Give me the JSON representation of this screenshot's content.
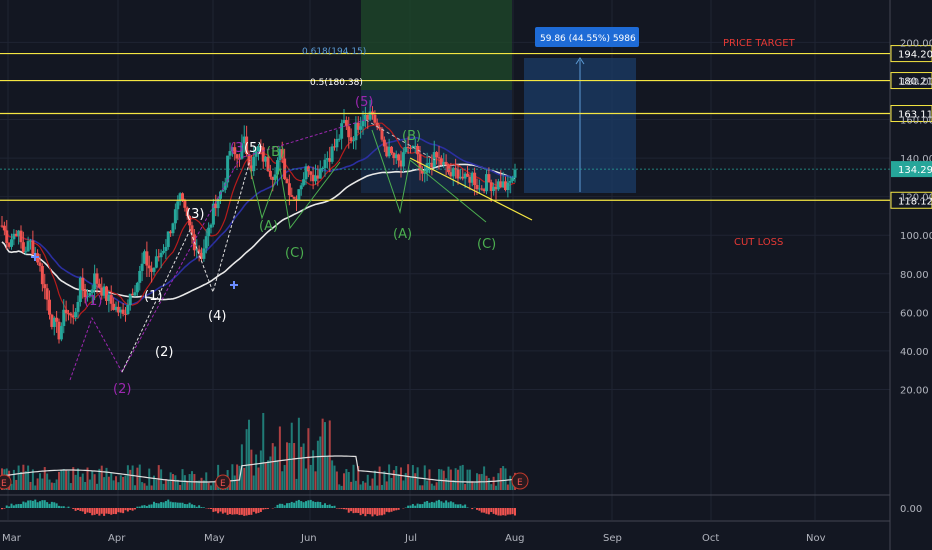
{
  "chart_data": {
    "type": "candlestick",
    "title": "",
    "xlabel": "",
    "ylabel": "",
    "x_tick_labels": [
      "Mar",
      "Apr",
      "May",
      "Jun",
      "Jul",
      "Aug",
      "Sep",
      "Oct",
      "Nov"
    ],
    "y_tick_labels": [
      "200.00",
      "180.00",
      "160.00",
      "140.00",
      "120.00",
      "100.00",
      "80.00",
      "60.00",
      "40.00",
      "20.00"
    ],
    "y_ticks": [
      200,
      180,
      160,
      140,
      120,
      100,
      80,
      60,
      40,
      20
    ],
    "ylim": [
      0,
      218
    ],
    "current_price": 134.29,
    "current_price_label": "134.29",
    "horizontal_levels": [
      {
        "label": "194.20",
        "value": 194.2
      },
      {
        "label": "180.21",
        "value": 180.21
      },
      {
        "label": "163.11",
        "value": 163.11
      },
      {
        "label": "118.12",
        "value": 118.12
      }
    ],
    "fib_labels": [
      {
        "text": "0.618(194.15)",
        "value": 194.15,
        "color": "#5b9bd5"
      },
      {
        "text": "0.5(180.38)",
        "value": 180.38,
        "color": "#ffffff"
      }
    ],
    "annotations": {
      "price_target": "PRICE TARGET",
      "cut_loss": "CUT LOSS",
      "measure_box": "59.86 (44.55%) 5986"
    },
    "oscillator_tick_label": "0.00",
    "wave_labels": [
      {
        "text": "(1)",
        "color": "purple"
      },
      {
        "text": "(2)",
        "color": "purple"
      },
      {
        "text": "(3",
        "color": "purple"
      },
      {
        "text": "(5)",
        "color": "purple"
      },
      {
        "text": "(5)",
        "color": "white"
      },
      {
        "text": "(1)",
        "color": "white"
      },
      {
        "text": "(2)",
        "color": "white"
      },
      {
        "text": "(3)",
        "color": "white"
      },
      {
        "text": "(4)",
        "color": "white"
      },
      {
        "text": "(A)",
        "color": "green"
      },
      {
        "text": "(B)",
        "color": "green"
      },
      {
        "text": "(C)",
        "color": "green"
      },
      {
        "text": "(A)",
        "color": "green"
      },
      {
        "text": "(B)",
        "color": "green"
      },
      {
        "text": "(C)",
        "color": "green"
      }
    ],
    "earnings_marker": "E",
    "close_series": [
      105,
      96,
      103,
      92,
      96,
      88,
      72,
      56,
      49,
      62,
      56,
      74,
      68,
      78,
      72,
      66,
      62,
      58,
      70,
      76,
      88,
      81,
      89,
      96,
      108,
      118,
      108,
      96,
      90,
      102,
      118,
      124,
      144,
      140,
      148,
      136,
      145,
      138,
      132,
      142,
      127,
      119,
      128,
      136,
      130,
      138,
      142,
      148,
      158,
      150,
      158,
      164,
      163,
      152,
      144,
      140,
      136,
      146,
      144,
      128,
      138,
      140,
      136,
      131,
      133,
      128,
      131,
      124,
      128,
      126,
      127,
      124,
      134
    ],
    "colors": {
      "up": "#26a69a",
      "down": "#ef5350",
      "level": "#f5e642",
      "ma_long": "#e8e8e8",
      "ma_mid": "#2b2fa0",
      "ma_short": "#b71c1c"
    }
  }
}
